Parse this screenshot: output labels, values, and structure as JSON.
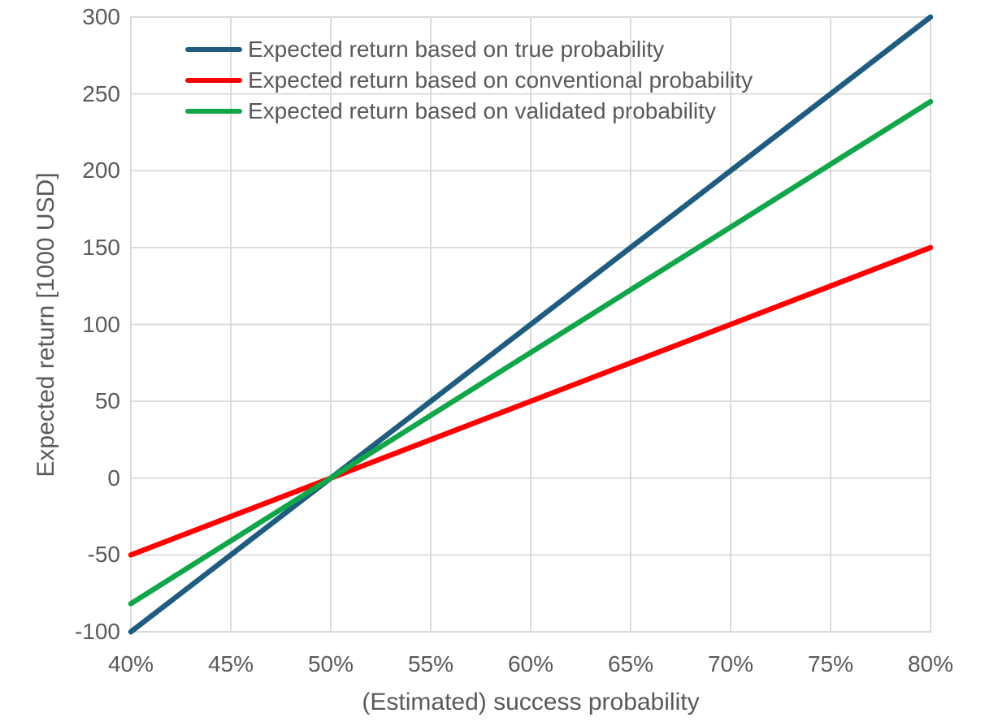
{
  "chart_data": {
    "type": "line",
    "title": "",
    "xlabel": "(Estimated) success probability",
    "ylabel": "Expected return [1000 USD]",
    "x_tick_labels": [
      "40%",
      "45%",
      "50%",
      "55%",
      "60%",
      "65%",
      "70%",
      "75%",
      "80%"
    ],
    "x_values": [
      0.4,
      0.45,
      0.5,
      0.55,
      0.6,
      0.65,
      0.7,
      0.75,
      0.8
    ],
    "y_tick_labels": [
      "300",
      "250",
      "200",
      "150",
      "100",
      "50",
      "0",
      "-50",
      "-100"
    ],
    "y_tick_values": [
      300,
      250,
      200,
      150,
      100,
      50,
      0,
      -50,
      -100
    ],
    "xlim": [
      0.4,
      0.8
    ],
    "ylim": [
      -100,
      300
    ],
    "grid": true,
    "legend_position": "top-left-inside",
    "colors": {
      "gridline": "#D9D9D9",
      "axis_text": "#595959",
      "background": "#FFFFFF",
      "series_true": "#1F5C7F",
      "series_conventional": "#FF0000",
      "series_validated": "#12A64A"
    },
    "series": [
      {
        "name": "Expected return based on true probability",
        "color": "#1F5C7F",
        "values": [
          -100,
          -50,
          0,
          50,
          100,
          150,
          200,
          250,
          300
        ]
      },
      {
        "name": "Expected return based on conventional probability",
        "color": "#FF0000",
        "values": [
          -50,
          -25,
          0,
          25,
          50,
          75,
          100,
          125,
          150
        ]
      },
      {
        "name": "Expected return based on validated probability",
        "color": "#12A64A",
        "values": [
          -81.7,
          -40.8,
          0,
          40.8,
          81.7,
          122.5,
          163.3,
          204.2,
          245
        ]
      }
    ]
  }
}
